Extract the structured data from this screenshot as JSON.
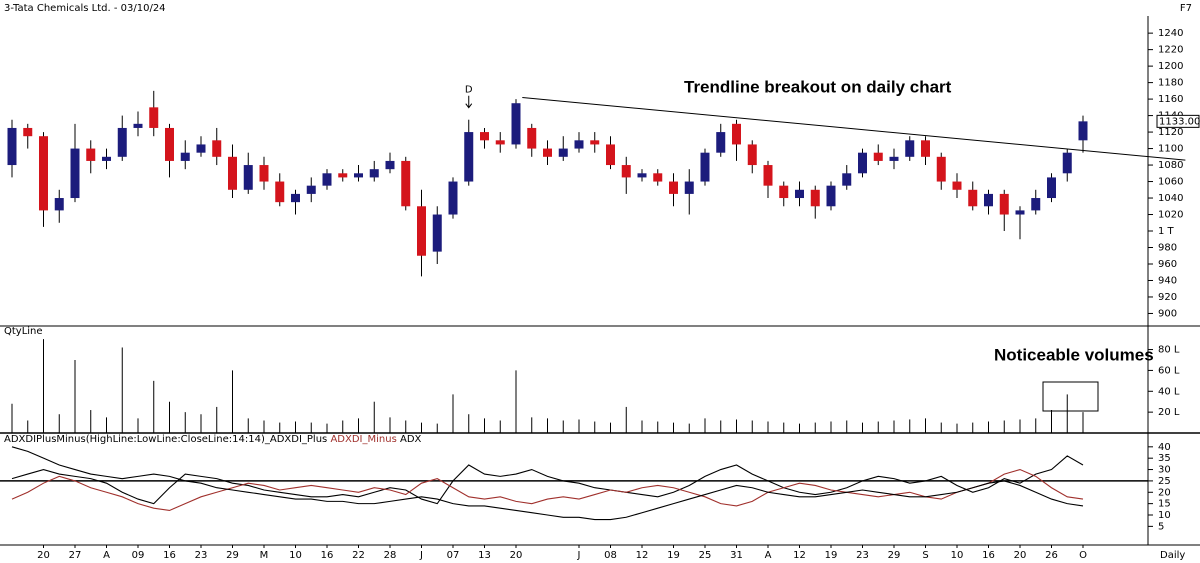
{
  "header": {
    "title": "3-Tata Chemicals Ltd. - 03/10/24",
    "shortcut": "F7",
    "timeframe": "Daily"
  },
  "chart_data": [
    {
      "type": "candlestick",
      "up_color": "#1c1c7c",
      "down_color": "#d4141c",
      "open": [
        1080,
        1125,
        1115,
        1025,
        1040,
        1100,
        1085,
        1090,
        1125,
        1150,
        1125,
        1085,
        1095,
        1110,
        1090,
        1050,
        1080,
        1060,
        1035,
        1045,
        1055,
        1070,
        1065,
        1065,
        1075,
        1085,
        1030,
        975,
        1020,
        1060,
        1120,
        1110,
        1105,
        1125,
        1100,
        1090,
        1100,
        1110,
        1105,
        1080,
        1065,
        1070,
        1060,
        1045,
        1060,
        1095,
        1130,
        1105,
        1080,
        1055,
        1040,
        1050,
        1030,
        1055,
        1070,
        1095,
        1085,
        1090,
        1110,
        1090,
        1060,
        1050,
        1030,
        1045,
        1020,
        1025,
        1040,
        1070,
        1110
      ],
      "high": [
        1135,
        1130,
        1120,
        1050,
        1130,
        1110,
        1100,
        1140,
        1145,
        1170,
        1130,
        1110,
        1115,
        1125,
        1105,
        1095,
        1090,
        1070,
        1050,
        1065,
        1075,
        1075,
        1080,
        1085,
        1095,
        1090,
        1050,
        1030,
        1065,
        1135,
        1125,
        1120,
        1160,
        1130,
        1110,
        1115,
        1120,
        1120,
        1115,
        1090,
        1075,
        1075,
        1070,
        1075,
        1100,
        1130,
        1135,
        1110,
        1085,
        1060,
        1060,
        1055,
        1060,
        1080,
        1100,
        1105,
        1100,
        1115,
        1115,
        1095,
        1070,
        1060,
        1050,
        1050,
        1030,
        1050,
        1070,
        1100,
        1140
      ],
      "low": [
        1065,
        1100,
        1005,
        1010,
        1035,
        1070,
        1075,
        1085,
        1115,
        1115,
        1065,
        1075,
        1090,
        1080,
        1040,
        1045,
        1050,
        1030,
        1020,
        1035,
        1050,
        1060,
        1060,
        1060,
        1070,
        1025,
        945,
        960,
        1015,
        1055,
        1100,
        1095,
        1100,
        1090,
        1080,
        1085,
        1095,
        1095,
        1075,
        1045,
        1060,
        1055,
        1030,
        1020,
        1055,
        1090,
        1085,
        1070,
        1040,
        1030,
        1030,
        1015,
        1025,
        1050,
        1065,
        1080,
        1075,
        1085,
        1080,
        1050,
        1040,
        1025,
        1020,
        1000,
        990,
        1020,
        1035,
        1060,
        1095
      ],
      "close": [
        1125,
        1115,
        1025,
        1040,
        1100,
        1085,
        1090,
        1125,
        1130,
        1125,
        1085,
        1095,
        1105,
        1090,
        1050,
        1080,
        1060,
        1035,
        1045,
        1055,
        1070,
        1065,
        1070,
        1075,
        1085,
        1030,
        970,
        1020,
        1060,
        1120,
        1110,
        1105,
        1155,
        1100,
        1090,
        1100,
        1110,
        1105,
        1080,
        1065,
        1070,
        1060,
        1045,
        1060,
        1095,
        1120,
        1105,
        1080,
        1055,
        1040,
        1050,
        1030,
        1055,
        1070,
        1095,
        1085,
        1090,
        1110,
        1090,
        1060,
        1050,
        1030,
        1045,
        1020,
        1025,
        1040,
        1065,
        1095,
        1133
      ],
      "ylim": [
        886,
        1262
      ],
      "yticks": [
        1240,
        1220,
        1200,
        1180,
        1160,
        1140,
        1120,
        1100,
        1080,
        1060,
        1040,
        1020,
        {
          "value": 1000,
          "label": "1 T"
        },
        980,
        960,
        940,
        920,
        900
      ],
      "last_price": {
        "value": 1133,
        "label": "1133.00"
      },
      "trendline": {
        "x": [
          32.4,
          74.5
        ],
        "values": [
          1162,
          1086
        ]
      },
      "marker": {
        "x": 29,
        "label": "D"
      },
      "annotation": "Trendline breakout on daily chart"
    },
    {
      "type": "bar",
      "title": "QtyLine",
      "color": "#000000",
      "values": [
        28,
        12,
        90,
        18,
        70,
        22,
        15,
        82,
        14,
        50,
        30,
        20,
        18,
        25,
        60,
        14,
        12,
        10,
        11,
        10,
        9,
        12,
        14,
        30,
        15,
        12,
        10,
        9,
        37,
        18,
        14,
        12,
        60,
        15,
        14,
        12,
        13,
        11,
        10,
        25,
        12,
        11,
        10,
        9,
        14,
        12,
        13,
        12,
        11,
        10,
        9,
        10,
        11,
        12,
        10,
        11,
        12,
        13,
        14,
        10,
        9,
        10,
        11,
        12,
        13,
        14,
        22,
        37,
        20
      ],
      "ylim": [
        0,
        93
      ],
      "yticks": [
        {
          "value": 80,
          "label": "80 L"
        },
        {
          "value": 60,
          "label": "60 L"
        },
        {
          "value": 40,
          "label": "40 L"
        },
        {
          "value": 20,
          "label": "20 L"
        }
      ],
      "annotation": "Noticeable volumes"
    },
    {
      "type": "line",
      "categories": [
        null,
        null,
        "20",
        null,
        "27",
        null,
        "A",
        null,
        "09",
        null,
        "16",
        null,
        "23",
        null,
        "29",
        null,
        "M",
        null,
        "10",
        null,
        "16",
        null,
        "22",
        null,
        "28",
        null,
        "J",
        null,
        "07",
        null,
        "13",
        null,
        "20",
        null,
        null,
        null,
        "J",
        null,
        "08",
        null,
        "12",
        null,
        "19",
        null,
        "25",
        null,
        "31",
        null,
        "A",
        null,
        "12",
        null,
        "19",
        null,
        "23",
        null,
        "29",
        null,
        "S",
        null,
        "10",
        null,
        "16",
        null,
        "20",
        null,
        "26",
        null,
        "O"
      ],
      "series": [
        {
          "name": "ADXDIPlusMinus(HighLine:LowLine:CloseLine:14:14)_ADXDI_Plus",
          "color": "#000000",
          "values": [
            26,
            28,
            30,
            28,
            27,
            26,
            24,
            20,
            17,
            15,
            22,
            28,
            27,
            26,
            24,
            23,
            21,
            20,
            19,
            18,
            18,
            19,
            18,
            20,
            22,
            21,
            17,
            15,
            25,
            32,
            28,
            27,
            28,
            30,
            27,
            25,
            24,
            22,
            21,
            20,
            19,
            18,
            20,
            23,
            27,
            30,
            32,
            28,
            25,
            22,
            20,
            19,
            20,
            22,
            25,
            27,
            26,
            24,
            25,
            27,
            23,
            20,
            22,
            26,
            24,
            28,
            30,
            36,
            32
          ]
        },
        {
          "name": "ADXDI_Minus",
          "color": "#a0302c",
          "values": [
            17,
            20,
            24,
            27,
            25,
            22,
            20,
            18,
            15,
            13,
            12,
            15,
            18,
            20,
            22,
            24,
            23,
            21,
            22,
            23,
            22,
            21,
            20,
            22,
            21,
            19,
            24,
            26,
            22,
            18,
            17,
            18,
            16,
            15,
            17,
            18,
            17,
            19,
            21,
            20,
            22,
            23,
            22,
            20,
            18,
            15,
            14,
            16,
            20,
            22,
            24,
            23,
            21,
            20,
            19,
            18,
            19,
            20,
            18,
            17,
            20,
            22,
            24,
            28,
            30,
            27,
            22,
            18,
            17
          ]
        },
        {
          "name": "ADX",
          "color": "#000000",
          "values": [
            40,
            38,
            35,
            32,
            30,
            28,
            27,
            26,
            27,
            28,
            27,
            25,
            24,
            22,
            21,
            20,
            19,
            18,
            17,
            17,
            16,
            16,
            15,
            15,
            16,
            17,
            18,
            17,
            15,
            14,
            14,
            13,
            12,
            11,
            10,
            9,
            9,
            8,
            8,
            9,
            11,
            13,
            15,
            17,
            19,
            21,
            23,
            22,
            20,
            19,
            18,
            18,
            19,
            20,
            21,
            20,
            19,
            18,
            18,
            19,
            20,
            22,
            24,
            25,
            23,
            20,
            17,
            15,
            14
          ]
        }
      ],
      "ylim": [
        -1,
        43
      ],
      "yticks": [
        40,
        35,
        30,
        25,
        20,
        15,
        10,
        5
      ],
      "reference_line": 25
    }
  ]
}
